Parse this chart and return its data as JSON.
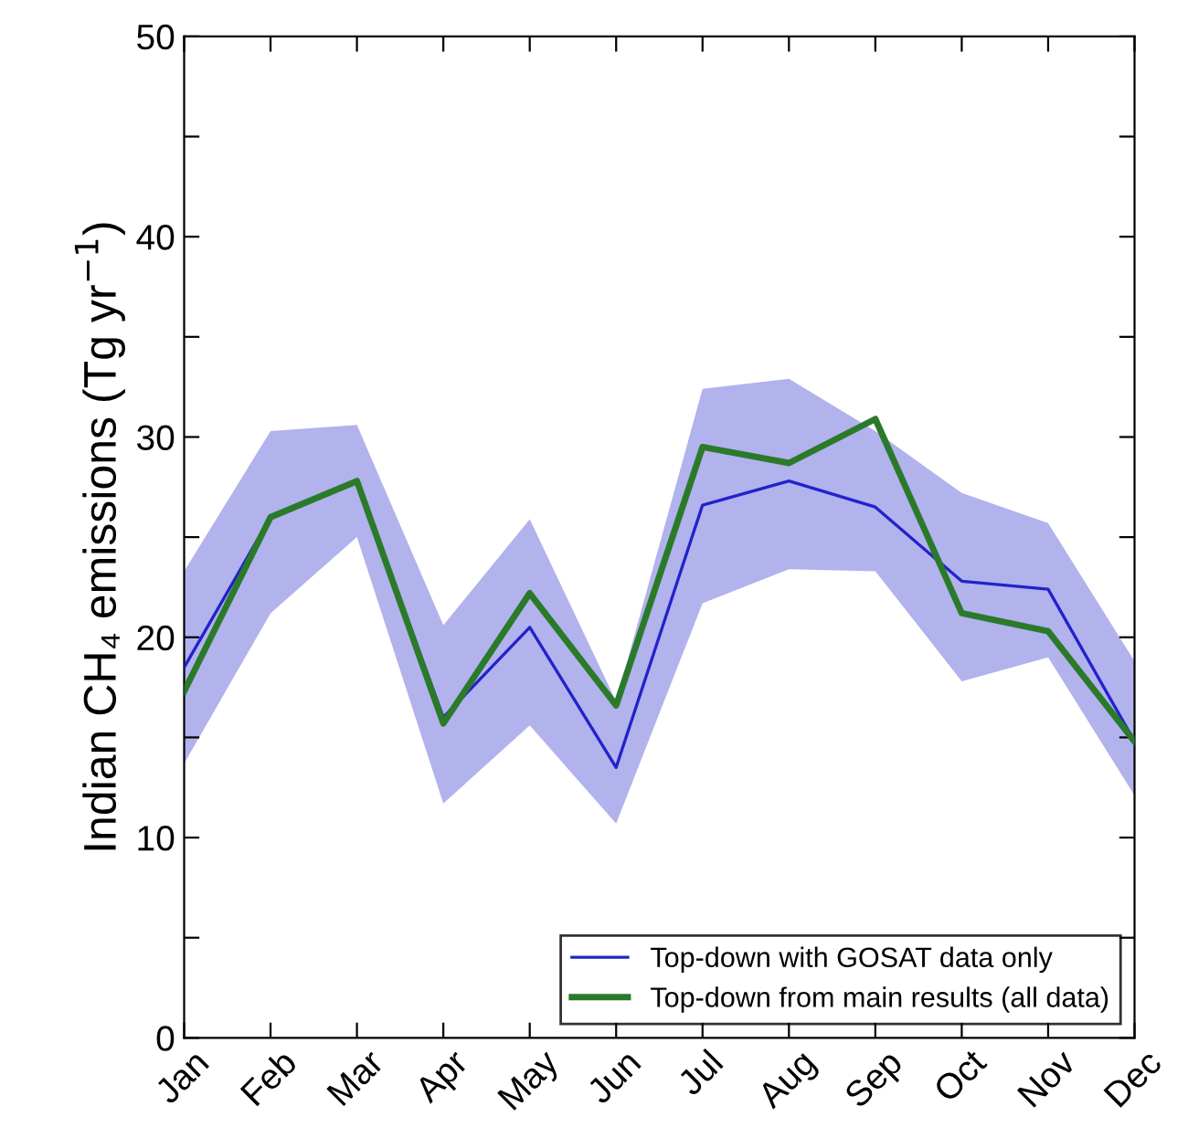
{
  "chart_data": {
    "type": "line",
    "ylabel": "Indian CH₄ emissions (Tg yr$^{−1}$)",
    "categories": [
      "Jan",
      "Feb",
      "Mar",
      "Apr",
      "May",
      "Jun",
      "Jul",
      "Aug",
      "Sep",
      "Oct",
      "Nov",
      "Dec"
    ],
    "series": [
      {
        "name": "Top-down with GOSAT data only",
        "color": "#2222cc",
        "values": [
          18.5,
          26.0,
          27.8,
          16.0,
          20.5,
          13.5,
          26.6,
          27.8,
          26.5,
          22.8,
          22.4,
          14.8
        ],
        "lower": [
          13.7,
          21.2,
          25.0,
          11.7,
          15.6,
          10.7,
          21.7,
          23.4,
          23.3,
          17.8,
          19.0,
          12.1
        ],
        "upper": [
          23.3,
          30.3,
          30.6,
          20.6,
          25.9,
          16.8,
          32.4,
          32.9,
          30.3,
          27.2,
          25.7,
          18.8
        ]
      },
      {
        "name": "Top-down from main results (all data)",
        "color": "#2a7a2a",
        "values": [
          17.3,
          26.0,
          27.8,
          15.7,
          22.2,
          16.6,
          29.5,
          28.7,
          30.9,
          21.2,
          20.3,
          14.8
        ]
      }
    ],
    "ylim": [
      0,
      50
    ],
    "yticks": [
      0,
      {
        "value": 5,
        "label": null
      },
      10,
      {
        "value": 15,
        "label": null
      },
      20,
      {
        "value": 25,
        "label": null
      },
      30,
      {
        "value": 35,
        "label": null
      },
      40,
      {
        "value": 45,
        "label": null
      },
      50
    ],
    "legend": "bottom right",
    "grid": false
  }
}
